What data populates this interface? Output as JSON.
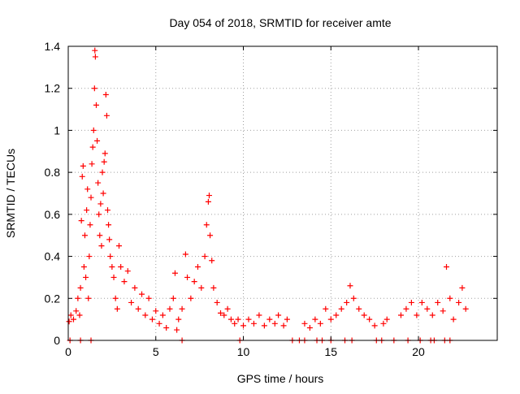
{
  "chart_data": {
    "type": "scatter",
    "title": "Day 054 of 2018, SRMTID for receiver amte",
    "xlabel": "GPS time / hours",
    "ylabel": "SRMTID / TECUs",
    "xlim": [
      0,
      24.5
    ],
    "ylim": [
      0,
      1.4
    ],
    "xticks": [
      0,
      5,
      10,
      15,
      20
    ],
    "xtick_labels": [
      "0",
      "5",
      "10",
      "15",
      "20"
    ],
    "yticks": [
      0,
      0.2,
      0.4,
      0.6,
      0.8,
      1.0,
      1.2,
      1.4
    ],
    "ytick_labels": [
      "0",
      "0.2",
      "0.4",
      "0.6",
      "0.8",
      "1",
      "1.2",
      "1.4"
    ],
    "grid": true,
    "marker": "plus",
    "color": "#ff0000",
    "series": [
      {
        "name": "SRMTID",
        "points": [
          [
            0.05,
            0.09
          ],
          [
            0.15,
            0.12
          ],
          [
            0.3,
            0.1
          ],
          [
            0.45,
            0.14
          ],
          [
            0.55,
            0.2
          ],
          [
            0.65,
            0.12
          ],
          [
            0.7,
            0.25
          ],
          [
            0.75,
            0.57
          ],
          [
            0.8,
            0.78
          ],
          [
            0.85,
            0.83
          ],
          [
            0.9,
            0.35
          ],
          [
            0.95,
            0.5
          ],
          [
            1.0,
            0.3
          ],
          [
            1.05,
            0.62
          ],
          [
            1.1,
            0.72
          ],
          [
            1.15,
            0.2
          ],
          [
            1.2,
            0.4
          ],
          [
            1.25,
            0.55
          ],
          [
            1.3,
            0.68
          ],
          [
            1.35,
            0.84
          ],
          [
            1.4,
            0.92
          ],
          [
            1.45,
            1.0
          ],
          [
            1.5,
            1.2
          ],
          [
            1.52,
            1.38
          ],
          [
            1.55,
            1.35
          ],
          [
            1.6,
            1.12
          ],
          [
            1.65,
            0.95
          ],
          [
            1.7,
            0.75
          ],
          [
            1.75,
            0.6
          ],
          [
            1.8,
            0.5
          ],
          [
            1.85,
            0.65
          ],
          [
            1.9,
            0.45
          ],
          [
            1.95,
            0.8
          ],
          [
            2.0,
            0.7
          ],
          [
            2.05,
            0.85
          ],
          [
            2.1,
            0.89
          ],
          [
            2.15,
            1.17
          ],
          [
            2.2,
            1.07
          ],
          [
            2.25,
            0.62
          ],
          [
            2.3,
            0.55
          ],
          [
            2.35,
            0.48
          ],
          [
            2.4,
            0.4
          ],
          [
            2.5,
            0.35
          ],
          [
            2.6,
            0.3
          ],
          [
            2.7,
            0.2
          ],
          [
            2.8,
            0.15
          ],
          [
            2.9,
            0.45
          ],
          [
            3.0,
            0.35
          ],
          [
            3.2,
            0.28
          ],
          [
            3.4,
            0.33
          ],
          [
            3.6,
            0.18
          ],
          [
            3.8,
            0.25
          ],
          [
            4.0,
            0.15
          ],
          [
            4.2,
            0.22
          ],
          [
            4.4,
            0.12
          ],
          [
            4.6,
            0.2
          ],
          [
            4.8,
            0.1
          ],
          [
            5.0,
            0.14
          ],
          [
            5.2,
            0.08
          ],
          [
            5.4,
            0.12
          ],
          [
            5.6,
            0.06
          ],
          [
            5.8,
            0.15
          ],
          [
            6.0,
            0.2
          ],
          [
            6.1,
            0.32
          ],
          [
            6.2,
            0.05
          ],
          [
            6.3,
            0.1
          ],
          [
            6.5,
            0.15
          ],
          [
            6.7,
            0.41
          ],
          [
            6.8,
            0.3
          ],
          [
            7.0,
            0.2
          ],
          [
            7.2,
            0.28
          ],
          [
            7.4,
            0.35
          ],
          [
            7.6,
            0.25
          ],
          [
            7.8,
            0.4
          ],
          [
            7.9,
            0.55
          ],
          [
            8.0,
            0.66
          ],
          [
            8.05,
            0.69
          ],
          [
            8.1,
            0.5
          ],
          [
            8.2,
            0.38
          ],
          [
            8.3,
            0.25
          ],
          [
            8.5,
            0.18
          ],
          [
            8.7,
            0.13
          ],
          [
            8.9,
            0.12
          ],
          [
            9.1,
            0.15
          ],
          [
            9.3,
            0.1
          ],
          [
            9.5,
            0.08
          ],
          [
            9.7,
            0.1
          ],
          [
            10.0,
            0.07
          ],
          [
            10.3,
            0.1
          ],
          [
            10.6,
            0.08
          ],
          [
            10.9,
            0.12
          ],
          [
            11.2,
            0.07
          ],
          [
            11.5,
            0.1
          ],
          [
            11.8,
            0.08
          ],
          [
            12.0,
            0.12
          ],
          [
            12.3,
            0.07
          ],
          [
            12.5,
            0.1
          ],
          [
            13.5,
            0.08
          ],
          [
            13.8,
            0.06
          ],
          [
            14.1,
            0.1
          ],
          [
            14.4,
            0.08
          ],
          [
            14.7,
            0.15
          ],
          [
            15.0,
            0.1
          ],
          [
            15.3,
            0.12
          ],
          [
            15.6,
            0.15
          ],
          [
            15.9,
            0.18
          ],
          [
            16.1,
            0.26
          ],
          [
            16.3,
            0.2
          ],
          [
            16.6,
            0.15
          ],
          [
            16.9,
            0.12
          ],
          [
            17.2,
            0.1
          ],
          [
            17.5,
            0.07
          ],
          [
            18.0,
            0.08
          ],
          [
            18.2,
            0.1
          ],
          [
            19.0,
            0.12
          ],
          [
            19.3,
            0.15
          ],
          [
            19.6,
            0.18
          ],
          [
            19.9,
            0.12
          ],
          [
            20.2,
            0.18
          ],
          [
            20.5,
            0.15
          ],
          [
            20.8,
            0.12
          ],
          [
            21.1,
            0.18
          ],
          [
            21.4,
            0.14
          ],
          [
            21.6,
            0.35
          ],
          [
            21.8,
            0.2
          ],
          [
            22.0,
            0.1
          ],
          [
            22.3,
            0.18
          ],
          [
            22.5,
            0.25
          ],
          [
            22.7,
            0.15
          ],
          [
            0.1,
            0
          ],
          [
            0.7,
            0
          ],
          [
            1.3,
            0
          ],
          [
            6.5,
            0
          ],
          [
            9.8,
            0
          ],
          [
            12.8,
            0
          ],
          [
            13.2,
            0
          ],
          [
            13.5,
            0
          ],
          [
            14.2,
            0
          ],
          [
            14.5,
            0
          ],
          [
            15.0,
            0
          ],
          [
            15.8,
            0
          ],
          [
            16.2,
            0
          ],
          [
            17.6,
            0
          ],
          [
            17.9,
            0
          ],
          [
            18.6,
            0
          ],
          [
            19.4,
            0
          ],
          [
            20.1,
            0
          ],
          [
            20.7,
            0
          ],
          [
            20.9,
            0
          ],
          [
            21.5,
            0
          ],
          [
            21.8,
            0
          ]
        ]
      }
    ]
  }
}
